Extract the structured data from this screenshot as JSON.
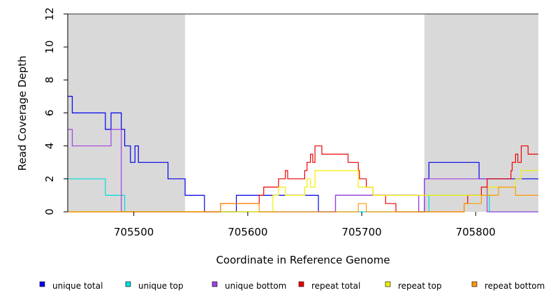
{
  "chart_data": {
    "type": "line",
    "xlabel": "Coordinate in Reference Genome",
    "ylabel": "Read Coverage Depth",
    "xlim": [
      705442,
      705855
    ],
    "ylim": [
      0,
      12
    ],
    "x_ticks": [
      705500,
      705600,
      705700,
      705800
    ],
    "y_ticks": [
      0,
      2,
      4,
      6,
      8,
      10,
      12
    ],
    "shaded_regions": [
      [
        705442,
        705545
      ],
      [
        705755,
        705855
      ]
    ],
    "grid": false,
    "legend_position": "bottom",
    "series": [
      {
        "name": "unique total",
        "color": "#0000ee",
        "points": [
          [
            705442,
            7
          ],
          [
            705446,
            7
          ],
          [
            705446,
            6
          ],
          [
            705475,
            6
          ],
          [
            705475,
            5
          ],
          [
            705480,
            5
          ],
          [
            705480,
            6
          ],
          [
            705489,
            6
          ],
          [
            705489,
            5
          ],
          [
            705492,
            5
          ],
          [
            705492,
            4
          ],
          [
            705497,
            4
          ],
          [
            705497,
            3
          ],
          [
            705501,
            3
          ],
          [
            705501,
            4
          ],
          [
            705504,
            4
          ],
          [
            705504,
            3
          ],
          [
            705530,
            3
          ],
          [
            705530,
            2
          ],
          [
            705545,
            2
          ],
          [
            705545,
            1
          ],
          [
            705562,
            1
          ],
          [
            705562,
            0
          ],
          [
            705590,
            0
          ],
          [
            705590,
            1
          ],
          [
            705662,
            1
          ],
          [
            705662,
            0
          ],
          [
            705677,
            0
          ],
          [
            705677,
            1
          ],
          [
            705750,
            1
          ],
          [
            705750,
            0
          ],
          [
            705755,
            0
          ],
          [
            705755,
            2
          ],
          [
            705759,
            2
          ],
          [
            705759,
            3
          ],
          [
            705803,
            3
          ],
          [
            705803,
            2
          ],
          [
            705855,
            2
          ]
        ]
      },
      {
        "name": "unique top",
        "color": "#00dddd",
        "points": [
          [
            705442,
            2
          ],
          [
            705475,
            2
          ],
          [
            705475,
            1
          ],
          [
            705492,
            1
          ],
          [
            705492,
            0
          ],
          [
            705759,
            0
          ],
          [
            705759,
            1
          ],
          [
            705812,
            1
          ],
          [
            705812,
            0
          ],
          [
            705855,
            0
          ]
        ]
      },
      {
        "name": "unique bottom",
        "color": "#a040e0",
        "points": [
          [
            705442,
            5
          ],
          [
            705446,
            5
          ],
          [
            705446,
            4
          ],
          [
            705480,
            4
          ],
          [
            705480,
            5
          ],
          [
            705489,
            5
          ],
          [
            705489,
            0
          ],
          [
            705677,
            0
          ],
          [
            705677,
            1
          ],
          [
            705750,
            1
          ],
          [
            705750,
            0
          ],
          [
            705755,
            0
          ],
          [
            705755,
            2
          ],
          [
            705810,
            2
          ],
          [
            705810,
            0
          ],
          [
            705855,
            0
          ]
        ]
      },
      {
        "name": "repeat total",
        "color": "#ee0000",
        "points": [
          [
            705442,
            0
          ],
          [
            705576,
            0
          ],
          [
            705576,
            0.5
          ],
          [
            705610,
            0.5
          ],
          [
            705610,
            1
          ],
          [
            705614,
            1
          ],
          [
            705614,
            1.5
          ],
          [
            705627,
            1.5
          ],
          [
            705627,
            2
          ],
          [
            705633,
            2
          ],
          [
            705633,
            2.5
          ],
          [
            705635,
            2.5
          ],
          [
            705635,
            2
          ],
          [
            705650,
            2
          ],
          [
            705650,
            2.5
          ],
          [
            705652,
            2.5
          ],
          [
            705652,
            3
          ],
          [
            705655,
            3
          ],
          [
            705655,
            3.5
          ],
          [
            705657,
            3.5
          ],
          [
            705657,
            3
          ],
          [
            705659,
            3
          ],
          [
            705659,
            4
          ],
          [
            705665,
            4
          ],
          [
            705665,
            3.5
          ],
          [
            705688,
            3.5
          ],
          [
            705688,
            3
          ],
          [
            705697,
            3
          ],
          [
            705697,
            2.5
          ],
          [
            705698,
            2.5
          ],
          [
            705698,
            2
          ],
          [
            705704,
            2
          ],
          [
            705704,
            1.5
          ],
          [
            705710,
            1.5
          ],
          [
            705710,
            1
          ],
          [
            705721,
            1
          ],
          [
            705721,
            0.5
          ],
          [
            705730,
            0.5
          ],
          [
            705730,
            0
          ],
          [
            705790,
            0
          ],
          [
            705790,
            0.5
          ],
          [
            705793,
            0.5
          ],
          [
            705793,
            1
          ],
          [
            705805,
            1
          ],
          [
            705805,
            1.5
          ],
          [
            705810,
            1.5
          ],
          [
            705810,
            2
          ],
          [
            705831,
            2
          ],
          [
            705831,
            2.5
          ],
          [
            705832,
            2.5
          ],
          [
            705832,
            3
          ],
          [
            705835,
            3
          ],
          [
            705835,
            3.5
          ],
          [
            705837,
            3.5
          ],
          [
            705837,
            3
          ],
          [
            705840,
            3
          ],
          [
            705840,
            4
          ],
          [
            705846,
            4
          ],
          [
            705846,
            3.5
          ],
          [
            705855,
            3.5
          ]
        ]
      },
      {
        "name": "repeat top",
        "color": "#f0f000",
        "points": [
          [
            705442,
            0
          ],
          [
            705622,
            0
          ],
          [
            705622,
            1
          ],
          [
            705627,
            1
          ],
          [
            705627,
            1.5
          ],
          [
            705633,
            1.5
          ],
          [
            705633,
            1
          ],
          [
            705650,
            1
          ],
          [
            705650,
            1.5
          ],
          [
            705652,
            1.5
          ],
          [
            705652,
            2
          ],
          [
            705655,
            2
          ],
          [
            705655,
            1.5
          ],
          [
            705659,
            1.5
          ],
          [
            705659,
            2.5
          ],
          [
            705697,
            2.5
          ],
          [
            705697,
            1.5
          ],
          [
            705710,
            1.5
          ],
          [
            705710,
            1
          ],
          [
            705811,
            1
          ],
          [
            705811,
            1.5
          ],
          [
            705835,
            1.5
          ],
          [
            705835,
            2
          ],
          [
            705840,
            2
          ],
          [
            705840,
            2.5
          ],
          [
            705855,
            2.5
          ]
        ]
      },
      {
        "name": "repeat bottom",
        "color": "#ff9900",
        "points": [
          [
            705442,
            0
          ],
          [
            705576,
            0
          ],
          [
            705576,
            0.5
          ],
          [
            705610,
            0.5
          ],
          [
            705610,
            0
          ],
          [
            705697,
            0
          ],
          [
            705697,
            0.5
          ],
          [
            705704,
            0.5
          ],
          [
            705704,
            0
          ],
          [
            705790,
            0
          ],
          [
            705790,
            0.5
          ],
          [
            705805,
            0.5
          ],
          [
            705805,
            1
          ],
          [
            705820,
            1
          ],
          [
            705820,
            1.5
          ],
          [
            705835,
            1.5
          ],
          [
            705835,
            1
          ],
          [
            705855,
            1
          ]
        ]
      }
    ]
  }
}
